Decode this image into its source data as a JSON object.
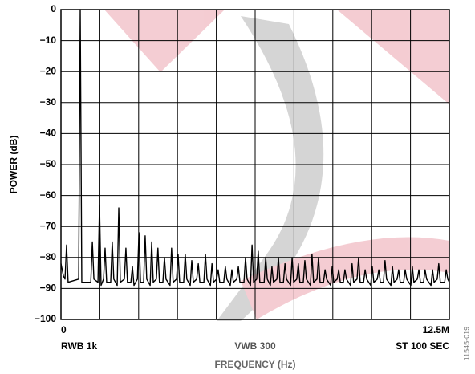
{
  "chart_data": {
    "type": "line",
    "x_label": "FREQUENCY (Hz)",
    "y_label": "POWER (dB)",
    "annotations": [
      "RWB 1k",
      "VWB 300",
      "ST 100 SEC"
    ],
    "figure_id": "11545-019",
    "xlim": [
      0,
      12500000
    ],
    "xticks": [
      0,
      {
        "value": 12500000,
        "label": "12.5M"
      }
    ],
    "ylim": [
      -100,
      0
    ],
    "yticks": [
      0,
      {
        "value": -10,
        "label": "−10"
      },
      {
        "value": -20,
        "label": "−20"
      },
      {
        "value": -30,
        "label": "−30"
      },
      {
        "value": -40,
        "label": "−40"
      },
      {
        "value": -50,
        "label": "−50"
      },
      {
        "value": -60,
        "label": "−60"
      },
      {
        "value": -70,
        "label": "−70"
      },
      {
        "value": -80,
        "label": "−80"
      },
      {
        "value": -90,
        "label": "−90"
      },
      {
        "value": -100,
        "label": "−100"
      }
    ],
    "grid": true,
    "series": [
      {
        "color": "#000000",
        "x": [
          0,
          80000,
          130000,
          180000,
          230000,
          570000,
          620000,
          670000,
          960000,
          1010000,
          1060000,
          1190000,
          1240000,
          1290000,
          1370000,
          1420000,
          1470000,
          1600000,
          1650000,
          1700000,
          1810000,
          1860000,
          1910000,
          2040000,
          2090000,
          2140000,
          2250000,
          2300000,
          2350000,
          2460000,
          2510000,
          2560000,
          2660000,
          2710000,
          2760000,
          2870000,
          2920000,
          2970000,
          3070000,
          3120000,
          3170000,
          3280000,
          3330000,
          3380000,
          3510000,
          3560000,
          3610000,
          3720000,
          3770000,
          3820000,
          3950000,
          4000000,
          4050000,
          4160000,
          4210000,
          4260000,
          4370000,
          4420000,
          4470000,
          4600000,
          4650000,
          4700000,
          4810000,
          4860000,
          4910000,
          5010000,
          5060000,
          5110000,
          5240000,
          5290000,
          5340000,
          5450000,
          5500000,
          5550000,
          5660000,
          5710000,
          5760000,
          5890000,
          5940000,
          5990000,
          6100000,
          6150000,
          6200000,
          6300000,
          6350000,
          6400000,
          6540000,
          6590000,
          6640000,
          6740000,
          6790000,
          6840000,
          6950000,
          7000000,
          7050000,
          7160000,
          7210000,
          7260000,
          7390000,
          7440000,
          7490000,
          7590000,
          7640000,
          7690000,
          7800000,
          7850000,
          7900000,
          8030000,
          8080000,
          8130000,
          8240000,
          8290000,
          8340000,
          8450000,
          8500000,
          8550000,
          8680000,
          8730000,
          8780000,
          8890000,
          8940000,
          8990000,
          9090000,
          9140000,
          9190000,
          9320000,
          9370000,
          9420000,
          9530000,
          9580000,
          9630000,
          9740000,
          9790000,
          9840000,
          9970000,
          10020000,
          10070000,
          10180000,
          10230000,
          10280000,
          10380000,
          10430000,
          10480000,
          10620000,
          10670000,
          10720000,
          10820000,
          10870000,
          10920000,
          11030000,
          11080000,
          11130000,
          11260000,
          11310000,
          11360000,
          11470000,
          11520000,
          11570000,
          11670000,
          11720000,
          11770000,
          11910000,
          11960000,
          12010000,
          12110000,
          12160000,
          12210000,
          12350000,
          12400000,
          12450000,
          12500000
        ],
        "values": [
          -82,
          -86,
          -87,
          -76,
          -88,
          -87,
          0,
          -88,
          -88,
          -75,
          -87,
          -88,
          -63,
          -89,
          -87,
          -77,
          -88,
          -88,
          -75,
          -87,
          -89,
          -64,
          -88,
          -87,
          -77,
          -88,
          -88,
          -83,
          -89,
          -87,
          -72,
          -88,
          -88,
          -73,
          -87,
          -89,
          -75,
          -88,
          -87,
          -77,
          -88,
          -88,
          -80,
          -87,
          -89,
          -77,
          -88,
          -87,
          -79,
          -88,
          -88,
          -79,
          -87,
          -89,
          -81,
          -88,
          -87,
          -82,
          -88,
          -88,
          -79,
          -87,
          -89,
          -82,
          -88,
          -87,
          -84,
          -88,
          -88,
          -83,
          -87,
          -89,
          -84,
          -88,
          -87,
          -83,
          -88,
          -88,
          -80,
          -87,
          -89,
          -76,
          -88,
          -87,
          -78,
          -88,
          -88,
          -80,
          -87,
          -89,
          -83,
          -88,
          -87,
          -80,
          -88,
          -88,
          -82,
          -87,
          -89,
          -80,
          -88,
          -87,
          -82,
          -88,
          -88,
          -81,
          -87,
          -89,
          -79,
          -88,
          -87,
          -80,
          -88,
          -88,
          -84,
          -87,
          -89,
          -83,
          -88,
          -87,
          -84,
          -88,
          -88,
          -84,
          -87,
          -89,
          -82,
          -88,
          -87,
          -80,
          -88,
          -88,
          -84,
          -87,
          -89,
          -83,
          -88,
          -87,
          -84,
          -88,
          -88,
          -81,
          -87,
          -89,
          -83,
          -88,
          -87,
          -84,
          -88,
          -88,
          -84,
          -87,
          -89,
          -83,
          -88,
          -87,
          -84,
          -88,
          -88,
          -84,
          -87,
          -89,
          -84,
          -88,
          -87,
          -82,
          -88,
          -88,
          -84,
          -87,
          -88
        ]
      }
    ]
  }
}
